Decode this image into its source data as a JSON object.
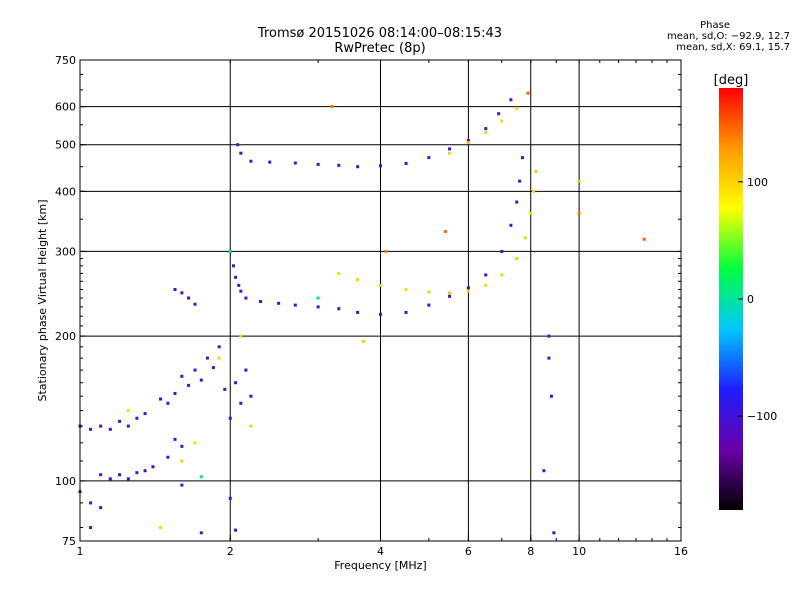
{
  "header": {
    "title_line1": "Tromsø 20151026 08:14:00–08:15:43",
    "title_line2": "RwPretec (8p)"
  },
  "phase_box": {
    "heading": "Phase",
    "line1": "mean, sd,O: −92.9, 12.7",
    "line2": "mean, sd,X:  69.1, 15.7"
  },
  "colorbar": {
    "unit": "[deg]",
    "ticks": [
      {
        "value": 100,
        "label": "100"
      },
      {
        "value": 0,
        "label": "0"
      },
      {
        "value": -100,
        "label": "−100"
      }
    ],
    "range": [
      -180,
      180
    ],
    "colors": [
      "#000000",
      "#6a00a8",
      "#1e1eff",
      "#00c8ff",
      "#00ff40",
      "#ffff00",
      "#ff9a00",
      "#ff0000"
    ]
  },
  "chart_data": {
    "type": "scatter",
    "xlabel": "Frequency [MHz]",
    "ylabel": "Stationary phase Virtual Height [km]",
    "xscale": "log",
    "yscale": "log",
    "xlim": [
      1,
      16
    ],
    "ylim": [
      75,
      750
    ],
    "xticks": [
      {
        "value": 1,
        "label": "1"
      },
      {
        "value": 2,
        "label": "2"
      },
      {
        "value": 4,
        "label": "4"
      },
      {
        "value": 6,
        "label": "6"
      },
      {
        "value": 8,
        "label": "8"
      },
      {
        "value": 10,
        "label": "10"
      },
      {
        "value": 16,
        "label": "16"
      }
    ],
    "yticks": [
      {
        "value": 75,
        "label": "75"
      },
      {
        "value": 100,
        "label": "100"
      },
      {
        "value": 200,
        "label": "200"
      },
      {
        "value": 300,
        "label": "300"
      },
      {
        "value": 400,
        "label": "400"
      },
      {
        "value": 500,
        "label": "500"
      },
      {
        "value": 600,
        "label": "600"
      },
      {
        "value": 750,
        "label": "750"
      }
    ],
    "gridlines_x": [
      2,
      4,
      6,
      8,
      10
    ],
    "gridlines_y": [
      100,
      200,
      300,
      400,
      500,
      600
    ],
    "grid": true,
    "color_encoding": "phase_deg",
    "series": [
      {
        "points": [
          [
            1.0,
            95,
            -100
          ],
          [
            1.05,
            90,
            -110
          ],
          [
            1.1,
            88,
            -95
          ],
          [
            1.0,
            130,
            -100
          ],
          [
            1.05,
            128,
            -105
          ],
          [
            1.1,
            130,
            -100
          ],
          [
            1.15,
            128,
            -110
          ],
          [
            1.2,
            133,
            -100
          ],
          [
            1.25,
            130,
            -95
          ],
          [
            1.3,
            135,
            -100
          ],
          [
            1.1,
            103,
            -100
          ],
          [
            1.15,
            101,
            -110
          ],
          [
            1.2,
            103,
            -95
          ],
          [
            1.25,
            101,
            -100
          ],
          [
            1.3,
            104,
            -105
          ],
          [
            1.35,
            105,
            -100
          ],
          [
            1.4,
            107,
            -110
          ],
          [
            1.35,
            138,
            -100
          ],
          [
            1.45,
            148,
            -105
          ],
          [
            1.5,
            145,
            -95
          ],
          [
            1.55,
            152,
            -100
          ],
          [
            1.6,
            165,
            -110
          ],
          [
            1.65,
            158,
            -100
          ],
          [
            1.7,
            170,
            -95
          ],
          [
            1.75,
            162,
            -105
          ],
          [
            1.8,
            180,
            -100
          ],
          [
            1.85,
            172,
            -110
          ],
          [
            1.9,
            190,
            -100
          ],
          [
            1.95,
            155,
            -95
          ],
          [
            2.0,
            135,
            -100
          ],
          [
            2.05,
            160,
            -105
          ],
          [
            2.1,
            145,
            -100
          ],
          [
            2.15,
            170,
            -95
          ],
          [
            2.2,
            150,
            -105
          ],
          [
            1.55,
            250,
            -100
          ],
          [
            1.6,
            246,
            -105
          ],
          [
            1.65,
            240,
            -95
          ],
          [
            1.7,
            233,
            -100
          ],
          [
            1.55,
            122,
            -100
          ],
          [
            1.6,
            118,
            -105
          ],
          [
            1.5,
            112,
            -95
          ],
          [
            1.6,
            98,
            -100
          ],
          [
            2.0,
            300,
            -100
          ],
          [
            2.03,
            280,
            -105
          ],
          [
            2.05,
            265,
            -95
          ],
          [
            2.08,
            255,
            -100
          ],
          [
            2.1,
            248,
            -110
          ],
          [
            2.15,
            240,
            -100
          ],
          [
            2.3,
            236,
            -105
          ],
          [
            2.5,
            234,
            -100
          ],
          [
            2.7,
            232,
            -95
          ],
          [
            3.0,
            230,
            -100
          ],
          [
            3.3,
            228,
            -105
          ],
          [
            3.6,
            224,
            -100
          ],
          [
            4.0,
            222,
            -100
          ],
          [
            4.5,
            224,
            -105
          ],
          [
            5.0,
            232,
            -100
          ],
          [
            5.5,
            242,
            -95
          ],
          [
            6.0,
            252,
            -100
          ],
          [
            6.5,
            268,
            -105
          ],
          [
            7.0,
            300,
            -100
          ],
          [
            7.3,
            340,
            -95
          ],
          [
            7.5,
            380,
            -100
          ],
          [
            7.6,
            420,
            -105
          ],
          [
            7.7,
            470,
            -100
          ],
          [
            2.07,
            500,
            -100
          ],
          [
            2.1,
            480,
            -105
          ],
          [
            2.2,
            462,
            -100
          ],
          [
            2.4,
            460,
            -95
          ],
          [
            2.7,
            458,
            -100
          ],
          [
            3.0,
            455,
            -105
          ],
          [
            3.3,
            453,
            -100
          ],
          [
            3.6,
            450,
            -95
          ],
          [
            4.0,
            452,
            -100
          ],
          [
            4.5,
            457,
            -105
          ],
          [
            5.0,
            470,
            -100
          ],
          [
            5.5,
            490,
            -95
          ],
          [
            6.0,
            510,
            -100
          ],
          [
            6.5,
            540,
            -105
          ],
          [
            6.9,
            580,
            -100
          ],
          [
            7.3,
            620,
            -95
          ],
          [
            8.7,
            200,
            -100
          ],
          [
            8.7,
            180,
            -105
          ],
          [
            8.8,
            150,
            -100
          ],
          [
            8.5,
            105,
            -100
          ],
          [
            8.9,
            78,
            -110
          ],
          [
            2.0,
            92,
            -100
          ],
          [
            2.05,
            79,
            -105
          ],
          [
            1.75,
            78,
            -100
          ],
          [
            1.05,
            80,
            -110
          ]
        ]
      },
      {
        "points": [
          [
            3.3,
            270,
            100
          ],
          [
            3.6,
            262,
            105
          ],
          [
            4.0,
            255,
            100
          ],
          [
            4.5,
            250,
            95
          ],
          [
            5.0,
            247,
            100
          ],
          [
            5.5,
            246,
            105
          ],
          [
            6.0,
            248,
            100
          ],
          [
            6.5,
            255,
            95
          ],
          [
            7.0,
            268,
            100
          ],
          [
            7.5,
            290,
            105
          ],
          [
            7.8,
            320,
            100
          ],
          [
            8.0,
            360,
            95
          ],
          [
            8.1,
            400,
            100
          ],
          [
            8.2,
            440,
            105
          ],
          [
            5.5,
            480,
            100
          ],
          [
            6.0,
            505,
            105
          ],
          [
            6.5,
            530,
            100
          ],
          [
            7.0,
            560,
            95
          ],
          [
            7.5,
            595,
            100
          ],
          [
            1.6,
            110,
            100
          ],
          [
            1.7,
            120,
            95
          ],
          [
            1.9,
            180,
            100
          ],
          [
            2.1,
            200,
            105
          ],
          [
            2.2,
            130,
            100
          ],
          [
            1.25,
            140,
            95
          ],
          [
            1.45,
            80,
            100
          ],
          [
            3.7,
            195,
            100
          ]
        ]
      },
      {
        "points": [
          [
            3.2,
            600,
            140
          ],
          [
            4.1,
            300,
            140
          ],
          [
            5.4,
            330,
            145
          ],
          [
            7.9,
            640,
            150
          ],
          [
            10.0,
            360,
            140
          ],
          [
            13.5,
            318,
            150
          ],
          [
            10.0,
            420,
            110
          ]
        ]
      },
      {
        "points": [
          [
            2.0,
            300,
            20
          ],
          [
            1.75,
            102,
            0
          ],
          [
            3.0,
            240,
            10
          ]
        ]
      }
    ]
  }
}
